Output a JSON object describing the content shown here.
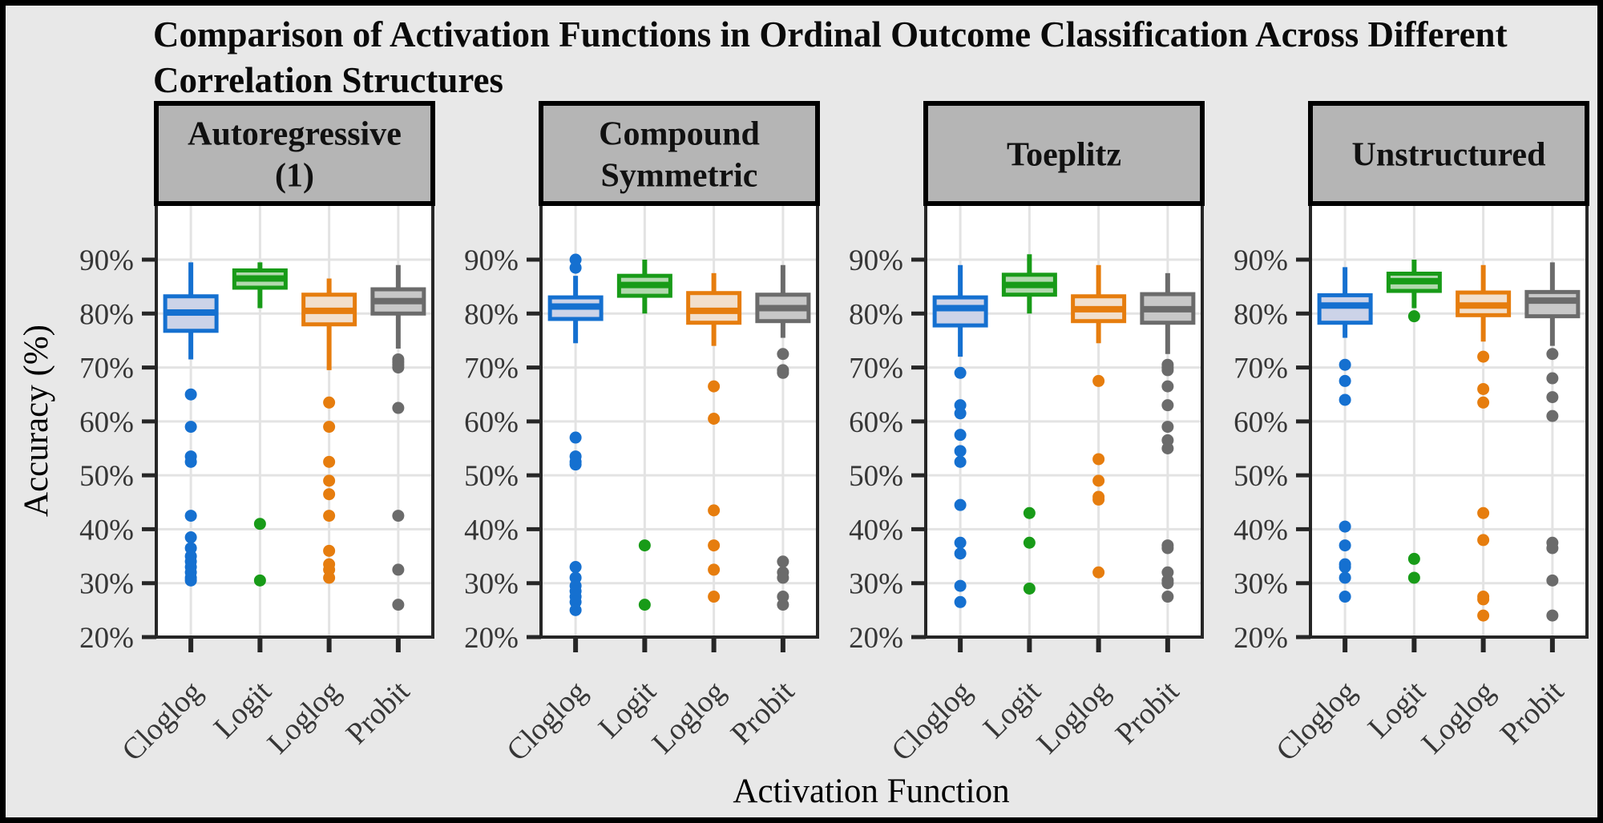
{
  "chart_data": {
    "type": "boxplot",
    "title": "Comparison of Activation Functions in Ordinal Outcome Classification Across Different\nCorrelation Structures",
    "xlabel": "Activation Function",
    "ylabel": "Accuracy (%)",
    "ylim": [
      20,
      100
    ],
    "grid": "major-on",
    "legend": "none",
    "y_ticks": [
      {
        "value": 90,
        "label": "90%"
      },
      {
        "value": 80,
        "label": "80%"
      },
      {
        "value": 70,
        "label": "70%"
      },
      {
        "value": 60,
        "label": "60%"
      },
      {
        "value": 50,
        "label": "50%"
      },
      {
        "value": 40,
        "label": "40%"
      },
      {
        "value": 30,
        "label": "30%"
      },
      {
        "value": 20,
        "label": "20%"
      }
    ],
    "categories": [
      "Cloglog",
      "Logit",
      "Loglog",
      "Probit"
    ],
    "palette": {
      "Cloglog": {
        "stroke": "#1570d0",
        "fill": "#ccd3e8"
      },
      "Logit": {
        "stroke": "#189b18",
        "fill": "#b2d9ae"
      },
      "Loglog": {
        "stroke": "#e67d0e",
        "fill": "#f2dfcc"
      },
      "Probit": {
        "stroke": "#6b6b6b",
        "fill": "#c8c8c8"
      }
    },
    "style": {
      "background": "#e8e8e8",
      "panel_fill": "#ffffff",
      "panel_border": "#262626",
      "gridline": "#e3e3e3",
      "strip_fill": "#b5b5b5",
      "strip_border": "#000000",
      "strip_text": "#111111",
      "tick_color": "#262626",
      "tick_label_color": "#363636",
      "axis_title_color": "#000000"
    },
    "facets": [
      {
        "label": "Autoregressive\n(1)",
        "boxes": [
          {
            "category": "Cloglog",
            "whisker_low": 71.5,
            "q1": 76.8,
            "median": 80.2,
            "q3": 83.2,
            "whisker_high": 89.5,
            "outliers": [
              65,
              59,
              53.5,
              52.5,
              42.5,
              38.5,
              36.5,
              35,
              34,
              33,
              32,
              31,
              30.5
            ]
          },
          {
            "category": "Logit",
            "whisker_low": 81,
            "q1": 84.8,
            "median": 86.5,
            "q3": 88,
            "whisker_high": 89.5,
            "outliers": [
              41,
              30.5
            ]
          },
          {
            "category": "Loglog",
            "whisker_low": 69.5,
            "q1": 78,
            "median": 80.5,
            "q3": 83.5,
            "whisker_high": 86.5,
            "outliers": [
              63.5,
              59,
              52.5,
              49,
              46.5,
              42.5,
              36,
              33.5,
              32.5,
              31
            ]
          },
          {
            "category": "Probit",
            "whisker_low": 73.5,
            "q1": 80,
            "median": 82.3,
            "q3": 84.5,
            "whisker_high": 89,
            "outliers": [
              71.5,
              71,
              70.5,
              70,
              62.5,
              42.5,
              32.5,
              26
            ]
          }
        ]
      },
      {
        "label": "Compound\nSymmetric",
        "boxes": [
          {
            "category": "Cloglog",
            "whisker_low": 74.5,
            "q1": 79,
            "median": 81.3,
            "q3": 83,
            "whisker_high": 87,
            "outliers": [
              90,
              88.5,
              57,
              53.5,
              52.5,
              52,
              33,
              31,
              29.5,
              28.5,
              27.5,
              26.5,
              25
            ]
          },
          {
            "category": "Logit",
            "whisker_low": 80,
            "q1": 83.3,
            "median": 85.3,
            "q3": 87,
            "whisker_high": 90,
            "outliers": [
              37,
              26
            ]
          },
          {
            "category": "Loglog",
            "whisker_low": 74,
            "q1": 78.3,
            "median": 80.5,
            "q3": 83.8,
            "whisker_high": 87.5,
            "outliers": [
              66.5,
              60.5,
              43.5,
              37,
              32.5,
              27.5
            ]
          },
          {
            "category": "Probit",
            "whisker_low": 75.5,
            "q1": 78.6,
            "median": 81,
            "q3": 83.5,
            "whisker_high": 89,
            "outliers": [
              72.5,
              69.5,
              69,
              34,
              32,
              31,
              27.5,
              26
            ]
          }
        ]
      },
      {
        "label": "Toeplitz",
        "boxes": [
          {
            "category": "Cloglog",
            "whisker_low": 72,
            "q1": 77.8,
            "median": 81,
            "q3": 83,
            "whisker_high": 89,
            "outliers": [
              69,
              63,
              61.5,
              57.5,
              54.5,
              52.5,
              44.5,
              37.5,
              35.5,
              29.5,
              26.5
            ]
          },
          {
            "category": "Logit",
            "whisker_low": 80,
            "q1": 83.5,
            "median": 85.3,
            "q3": 87.2,
            "whisker_high": 91,
            "outliers": [
              43,
              37.5,
              29
            ]
          },
          {
            "category": "Loglog",
            "whisker_low": 74.5,
            "q1": 78.6,
            "median": 80.8,
            "q3": 83.2,
            "whisker_high": 89,
            "outliers": [
              67.5,
              53,
              49,
              46,
              45.5,
              32
            ]
          },
          {
            "category": "Probit",
            "whisker_low": 72.5,
            "q1": 78.3,
            "median": 80.8,
            "q3": 83.6,
            "whisker_high": 87.5,
            "outliers": [
              70.5,
              70,
              69.5,
              66.5,
              63,
              59,
              56.5,
              55,
              37,
              36.5,
              32,
              30.5,
              30,
              27.5
            ]
          }
        ]
      },
      {
        "label": "Unstructured",
        "boxes": [
          {
            "category": "Cloglog",
            "whisker_low": 75.5,
            "q1": 78.3,
            "median": 81.5,
            "q3": 83.4,
            "whisker_high": 88.6,
            "outliers": [
              70.5,
              67.5,
              64,
              40.5,
              37,
              33.5,
              33,
              31,
              27.5
            ]
          },
          {
            "category": "Logit",
            "whisker_low": 81,
            "q1": 84.2,
            "median": 86,
            "q3": 87.4,
            "whisker_high": 90,
            "outliers": [
              79.5,
              34.5,
              31
            ]
          },
          {
            "category": "Loglog",
            "whisker_low": 74.8,
            "q1": 79.7,
            "median": 81.5,
            "q3": 83.9,
            "whisker_high": 89,
            "outliers": [
              72,
              66,
              63.5,
              43,
              38,
              27.5,
              27,
              24
            ]
          },
          {
            "category": "Probit",
            "whisker_low": 74,
            "q1": 79.5,
            "median": 82.4,
            "q3": 84,
            "whisker_high": 89.5,
            "outliers": [
              72.5,
              68,
              64.5,
              61,
              37.5,
              36.5,
              30.5,
              24
            ]
          }
        ]
      }
    ]
  }
}
